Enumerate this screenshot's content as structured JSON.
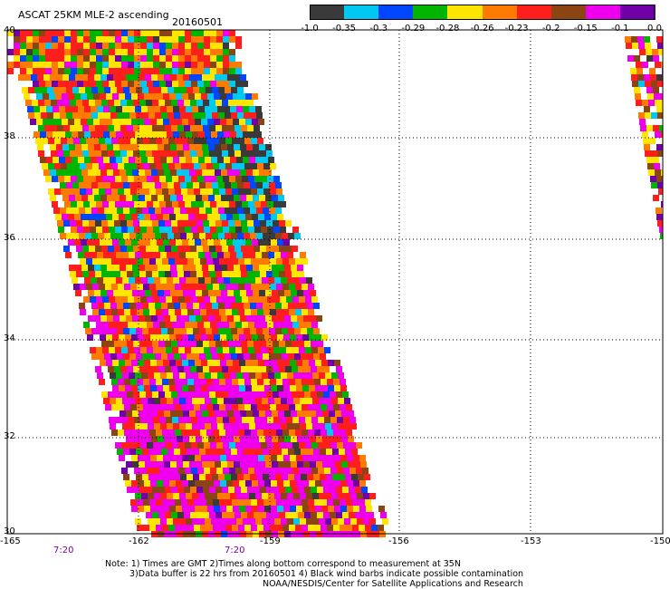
{
  "title": "ASCAT 25KM MLE-2 ascending",
  "date": "20160501",
  "colorbar": {
    "colors": [
      "#3a3a3a",
      "#00c8f0",
      "#0046ff",
      "#00b400",
      "#ffe600",
      "#ff7a00",
      "#ff1e1e",
      "#8b4513",
      "#ee00ee",
      "#7000a8"
    ],
    "tick_labels": [
      "-1.0",
      "-0.35",
      "-0.3",
      "-0.29",
      "-0.28",
      "-0.26",
      "-0.23",
      "-0.2",
      "-0.15",
      "-0.1",
      "0.0"
    ]
  },
  "lat_labels": [
    "40",
    "38",
    "36",
    "34",
    "32",
    "30"
  ],
  "lon_labels": [
    "-165",
    "-162",
    "-159",
    "-156",
    "-153",
    "-150"
  ],
  "time_labels": [
    "7:20",
    "7:20"
  ],
  "notes": [
    "Note: 1) Times are GMT 2)Times along bottom correspond to measurement at 35N",
    "3)Data buffer is 22 hrs from 20160501 4) Black wind barbs indicate possible contamination",
    "NOAA/NESDIS/Center for Satellite Applications and Research"
  ]
}
